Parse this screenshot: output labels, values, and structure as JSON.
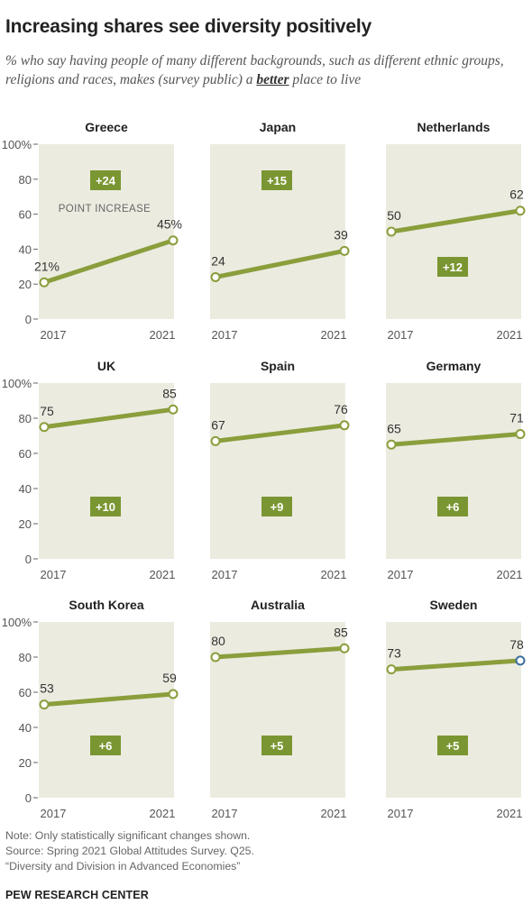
{
  "header": {
    "title": "Increasing shares see diversity positively",
    "subtitle_before": "% who say having people of many different backgrounds, such as different ethnic groups, religions and races, makes (survey public) a ",
    "subtitle_emph": "better",
    "subtitle_after": " place to live"
  },
  "colors": {
    "line": "#8a9e3c",
    "panel": "#ecebe0",
    "badge": "#7a9632",
    "highlight_marker": "#3a6f9e"
  },
  "chart_data": {
    "type": "line",
    "x": [
      "2017",
      "2021"
    ],
    "ylim": [
      0,
      100
    ],
    "yticks": [
      "0",
      "20",
      "40",
      "60",
      "80",
      "100%"
    ],
    "annotation": "POINT INCREASE",
    "panels": [
      {
        "name": "Greece",
        "values": [
          21,
          45
        ],
        "labels": [
          "21%",
          "45%"
        ],
        "change": "+24"
      },
      {
        "name": "Japan",
        "values": [
          24,
          39
        ],
        "labels": [
          "24",
          "39"
        ],
        "change": "+15"
      },
      {
        "name": "Netherlands",
        "values": [
          50,
          62
        ],
        "labels": [
          "50",
          "62"
        ],
        "change": "+12"
      },
      {
        "name": "UK",
        "values": [
          75,
          85
        ],
        "labels": [
          "75",
          "85"
        ],
        "change": "+10"
      },
      {
        "name": "Spain",
        "values": [
          67,
          76
        ],
        "labels": [
          "67",
          "76"
        ],
        "change": "+9"
      },
      {
        "name": "Germany",
        "values": [
          65,
          71
        ],
        "labels": [
          "65",
          "71"
        ],
        "change": "+6"
      },
      {
        "name": "South Korea",
        "values": [
          53,
          59
        ],
        "labels": [
          "53",
          "59"
        ],
        "change": "+6"
      },
      {
        "name": "Australia",
        "values": [
          80,
          85
        ],
        "labels": [
          "80",
          "85"
        ],
        "change": "+5"
      },
      {
        "name": "Sweden",
        "values": [
          73,
          78
        ],
        "labels": [
          "73",
          "78"
        ],
        "change": "+5"
      }
    ]
  },
  "footer": {
    "note": "Note: Only statistically significant changes shown.",
    "source": "Source: Spring 2021 Global Attitudes Survey. Q25.",
    "report": "“Diversity and Division in Advanced Economies”",
    "brand": "PEW RESEARCH CENTER"
  }
}
